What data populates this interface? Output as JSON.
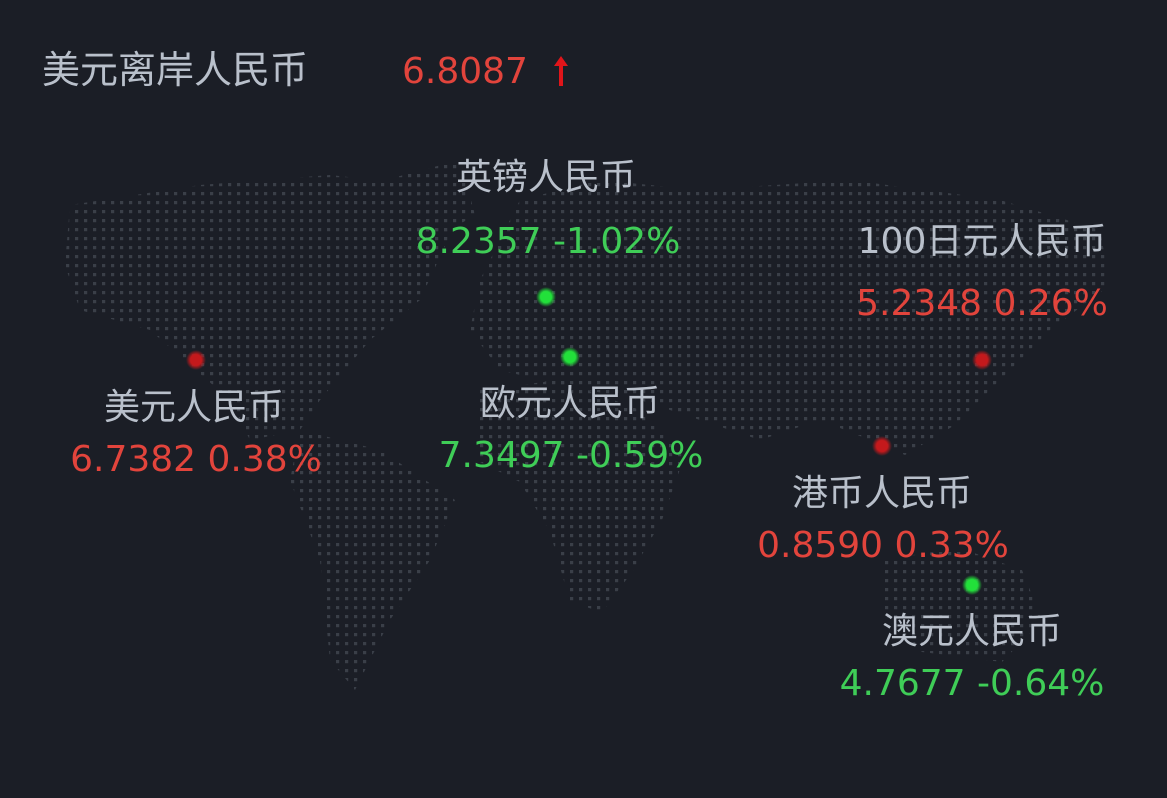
{
  "header": {
    "title": "美元离岸人民币",
    "value": "6.8087",
    "trend": "up",
    "trend_icon": "arrow-up-icon"
  },
  "colors": {
    "background": "#1b1e26",
    "up": "#e2443c",
    "down": "#3fcd57",
    "label": "#b9c0cb",
    "map_dots": "#3a3f48"
  },
  "pairs": [
    {
      "name": "英镑人民币",
      "rate": "8.2357",
      "change": "-1.02%",
      "trend": "down"
    },
    {
      "name": "100日元人民币",
      "rate": "5.2348",
      "change": "0.26%",
      "trend": "up"
    },
    {
      "name": "美元人民币",
      "rate": "6.7382",
      "change": "0.38%",
      "trend": "up"
    },
    {
      "name": "欧元人民币",
      "rate": "7.3497",
      "change": "-0.59%",
      "trend": "down"
    },
    {
      "name": "港币人民币",
      "rate": "0.8590",
      "change": "0.33%",
      "trend": "up"
    },
    {
      "name": "澳元人民币",
      "rate": "4.7677",
      "change": "-0.64%",
      "trend": "down"
    }
  ]
}
